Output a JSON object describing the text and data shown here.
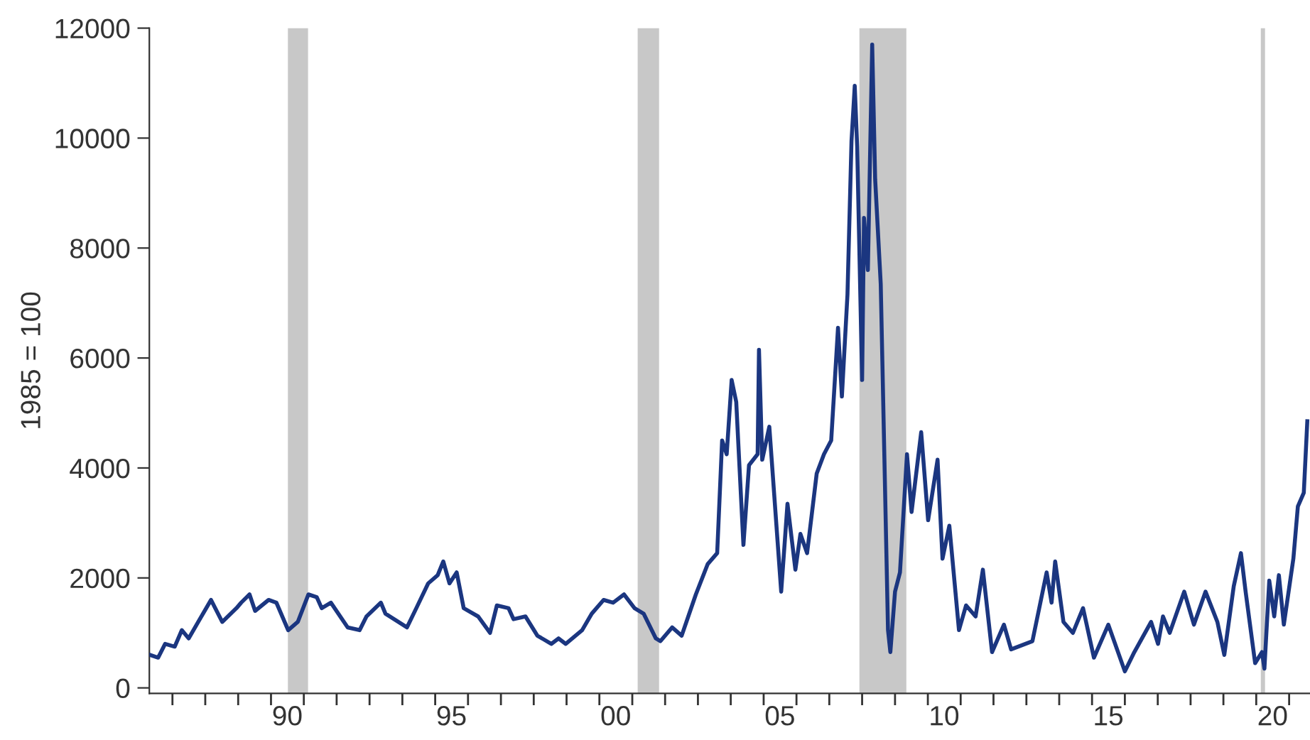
{
  "chart_data": {
    "type": "line",
    "ylabel": "1985 = 100",
    "xlim": [
      "1986-04-19",
      "2021-08-21"
    ],
    "ylim": [
      -100,
      12000
    ],
    "yticks": [
      0,
      2000,
      4000,
      6000,
      8000,
      10000,
      12000
    ],
    "xticks": [
      {
        "value": "1987",
        "label": null
      },
      {
        "value": "1988",
        "label": null
      },
      {
        "value": "1989",
        "label": null
      },
      {
        "value": "1990",
        "label": null
      },
      {
        "value": "1991",
        "label": null
      },
      {
        "value": "1992",
        "label": null
      },
      {
        "value": "1993",
        "label": null
      },
      {
        "value": "1994",
        "label": null
      },
      {
        "value": "1995",
        "label": null
      },
      {
        "value": "1996",
        "label": null
      },
      {
        "value": "1997",
        "label": null
      },
      {
        "value": "1998",
        "label": null
      },
      {
        "value": "1999",
        "label": null
      },
      {
        "value": "2000",
        "label": null
      },
      {
        "value": "2001",
        "label": null
      },
      {
        "value": "2002",
        "label": null
      },
      {
        "value": "2003",
        "label": null
      },
      {
        "value": "2004",
        "label": null
      },
      {
        "value": "2005",
        "label": null
      },
      {
        "value": "2006",
        "label": null
      },
      {
        "value": "2007",
        "label": null
      },
      {
        "value": "2008",
        "label": null
      },
      {
        "value": "2009",
        "label": null
      },
      {
        "value": "2010",
        "label": null
      },
      {
        "value": "2011",
        "label": null
      },
      {
        "value": "2012",
        "label": null
      },
      {
        "value": "2013",
        "label": null
      },
      {
        "value": "2014",
        "label": null
      },
      {
        "value": "2015",
        "label": null
      },
      {
        "value": "2016",
        "label": null
      },
      {
        "value": "2017",
        "label": null
      },
      {
        "value": "2018",
        "label": null
      },
      {
        "value": "2019",
        "label": null
      },
      {
        "value": "2020",
        "label": null
      },
      {
        "value": "2021",
        "label": null
      },
      {
        "value": "1990-07-01",
        "label": "90"
      },
      {
        "value": "1995-07-01",
        "label": "95"
      },
      {
        "value": "2000-07-01",
        "label": "00"
      },
      {
        "value": "2005-07-01",
        "label": "05"
      },
      {
        "value": "2010-07-01",
        "label": "10"
      },
      {
        "value": "2015-07-01",
        "label": "15"
      },
      {
        "value": "2020-07-01",
        "label": "20"
      }
    ],
    "grid": false,
    "legend": false,
    "marker": "none",
    "line_style": "solid",
    "bands": [
      {
        "axis": "x",
        "from": "1990-07-08",
        "to": "1991-02-17",
        "color": "#c8c8c8"
      },
      {
        "axis": "x",
        "from": "2001-03-02",
        "to": "2001-10-26",
        "color": "#c8c8c8"
      },
      {
        "axis": "x",
        "from": "2007-12-02",
        "to": "2009-05-07",
        "color": "#c8c8c8"
      },
      {
        "axis": "x",
        "from": "2020-02-21",
        "to": "2020-04-08",
        "color": "#c8c8c8"
      }
    ],
    "series": [
      {
        "color": "#1b3680",
        "x": [
          "1986-04-26",
          "1986-07-26",
          "1986-10-11",
          "1987-01-26",
          "1987-04-15",
          "1987-07-01",
          "1987-10-15",
          "1988-03-05",
          "1988-07-08",
          "1988-12-13",
          "1989-02-03",
          "1989-05-07",
          "1989-07-08",
          "1989-12-05",
          "1990-03-02",
          "1990-07-11",
          "1990-10-26",
          "1991-02-21",
          "1991-05-25",
          "1991-07-19",
          "1991-10-29",
          "1992-05-03",
          "1992-09-13",
          "1992-11-28",
          "1993-05-07",
          "1993-06-27",
          "1994-02-21",
          "1994-06-05",
          "1994-10-15",
          "1995-01-29",
          "1995-04-01",
          "1995-06-09",
          "1995-08-28",
          "1995-11-14",
          "1996-04-22",
          "1996-09-02",
          "1996-11-17",
          "1997-03-27",
          "1997-05-21",
          "1997-10-01",
          "1998-02-10",
          "1998-07-15",
          "1998-10-04",
          "1998-12-23",
          "1999-06-23",
          "1999-10-08",
          "2000-02-17",
          "2000-06-02",
          "2000-10-01",
          "2001-01-26",
          "2001-05-07",
          "2001-09-20",
          "2001-11-10",
          "2002-03-20",
          "2002-07-04",
          "2002-12-09",
          "2003-04-19",
          "2003-08-03",
          "2003-09-27",
          "2003-11-17",
          "2004-01-11",
          "2004-03-02",
          "2004-05-21",
          "2004-07-22",
          "2004-10-26",
          "2004-11-10",
          "2004-12-16",
          "2005-03-05",
          "2005-07-15",
          "2005-09-23",
          "2005-12-20",
          "2006-02-14",
          "2006-04-29",
          "2006-08-14",
          "2006-11-03",
          "2007-01-22",
          "2007-04-08",
          "2007-05-21",
          "2007-07-22",
          "2007-09-05",
          "2007-10-11",
          "2007-11-07",
          "2008-01-01",
          "2008-01-22",
          "2008-03-05",
          "2008-04-22",
          "2008-05-25",
          "2008-07-26",
          "2008-10-15",
          "2008-11-10",
          "2009-01-01",
          "2009-02-25",
          "2009-05-14",
          "2009-07-04",
          "2009-10-19",
          "2010-01-04",
          "2010-04-19",
          "2010-06-13",
          "2010-08-28",
          "2010-12-13",
          "2011-03-02",
          "2011-06-16",
          "2011-09-05",
          "2011-12-16",
          "2012-04-26",
          "2012-07-15",
          "2013-03-09",
          "2013-08-14",
          "2013-10-08",
          "2013-11-17",
          "2014-02-17",
          "2014-06-02",
          "2014-09-23",
          "2015-01-22",
          "2015-07-01",
          "2016-01-01",
          "2016-04-15",
          "2016-10-19",
          "2017-01-04",
          "2017-02-28",
          "2017-05-14",
          "2017-10-22",
          "2018-02-07",
          "2018-06-16",
          "2018-10-26",
          "2019-01-11",
          "2019-04-26",
          "2019-07-15",
          "2019-09-05",
          "2019-12-20",
          "2020-03-05",
          "2020-04-01",
          "2020-05-25",
          "2020-07-19",
          "2020-09-09",
          "2020-11-03",
          "2021-02-17",
          "2021-04-08",
          "2021-06-13",
          "2021-07-22"
        ],
        "values": [
          600,
          550,
          800,
          750,
          1050,
          900,
          1200,
          1600,
          1200,
          1450,
          1550,
          1700,
          1400,
          1600,
          1550,
          1050,
          1200,
          1700,
          1650,
          1450,
          1550,
          1100,
          1050,
          1300,
          1550,
          1350,
          1100,
          1450,
          1900,
          2050,
          2300,
          1900,
          2100,
          1450,
          1300,
          1000,
          1500,
          1450,
          1250,
          1300,
          950,
          800,
          900,
          800,
          1050,
          1350,
          1600,
          1550,
          1700,
          1450,
          1350,
          900,
          850,
          1100,
          950,
          1700,
          2250,
          2450,
          4500,
          4250,
          5600,
          5200,
          2600,
          4050,
          4250,
          6150,
          4150,
          4750,
          1750,
          3350,
          2150,
          2800,
          2450,
          3900,
          4250,
          4500,
          6550,
          5300,
          7150,
          9950,
          10950,
          9850,
          5600,
          8550,
          7600,
          11700,
          9250,
          7350,
          1050,
          650,
          1750,
          2100,
          4250,
          3200,
          4650,
          3050,
          4150,
          2350,
          2950,
          1050,
          1500,
          1300,
          2150,
          650,
          1150,
          700,
          850,
          2100,
          1550,
          2300,
          1200,
          1000,
          1450,
          550,
          1150,
          300,
          650,
          1200,
          800,
          1300,
          1000,
          1750,
          1150,
          1750,
          1200,
          600,
          1850,
          2450,
          1750,
          450,
          650,
          350,
          1950,
          1300,
          2050,
          1150,
          2350,
          3300,
          3550,
          4850
        ]
      }
    ]
  }
}
